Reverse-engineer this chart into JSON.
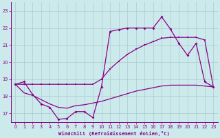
{
  "xlabel": "Windchill (Refroidissement éolien,°C)",
  "xlim": [
    -0.5,
    23.5
  ],
  "ylim": [
    16.5,
    23.5
  ],
  "yticks": [
    17,
    18,
    19,
    20,
    21,
    22,
    23
  ],
  "xticks": [
    0,
    1,
    2,
    3,
    4,
    5,
    6,
    7,
    8,
    9,
    10,
    11,
    12,
    13,
    14,
    15,
    16,
    17,
    18,
    19,
    20,
    21,
    22,
    23
  ],
  "bg_color": "#cce9eb",
  "grid_color": "#aacccc",
  "line_color": "#880088",
  "line1_x": [
    0,
    1,
    2,
    3,
    4,
    5,
    6,
    7,
    8,
    9,
    10,
    11,
    12,
    13,
    14,
    15,
    16,
    17,
    18,
    19,
    20,
    21,
    22,
    23
  ],
  "line1_y": [
    18.7,
    18.85,
    18.1,
    17.55,
    17.35,
    16.65,
    16.7,
    17.1,
    17.1,
    16.75,
    18.55,
    21.8,
    21.9,
    22.0,
    22.0,
    22.0,
    22.0,
    22.65,
    21.95,
    21.1,
    20.4,
    21.1,
    18.85,
    18.55
  ],
  "line2_x": [
    0,
    1,
    2,
    3,
    4,
    5,
    6,
    7,
    8,
    9,
    10,
    11,
    12,
    13,
    14,
    15,
    16,
    17,
    18,
    19,
    20,
    21,
    22,
    23
  ],
  "line2_y": [
    18.7,
    18.7,
    18.7,
    18.7,
    18.7,
    18.7,
    18.7,
    18.7,
    18.7,
    18.7,
    19.0,
    19.6,
    20.05,
    20.45,
    20.75,
    21.0,
    21.2,
    21.4,
    21.45,
    21.45,
    21.45,
    21.45,
    21.3,
    18.55
  ],
  "line3_x": [
    0,
    1,
    2,
    3,
    4,
    5,
    6,
    7,
    8,
    9,
    10,
    11,
    12,
    13,
    14,
    15,
    16,
    17,
    18,
    19,
    20,
    21,
    22,
    23
  ],
  "line3_y": [
    18.7,
    18.2,
    18.05,
    17.8,
    17.55,
    17.35,
    17.3,
    17.45,
    17.5,
    17.6,
    17.7,
    17.85,
    18.0,
    18.15,
    18.3,
    18.4,
    18.5,
    18.6,
    18.65,
    18.65,
    18.65,
    18.65,
    18.6,
    18.55
  ]
}
